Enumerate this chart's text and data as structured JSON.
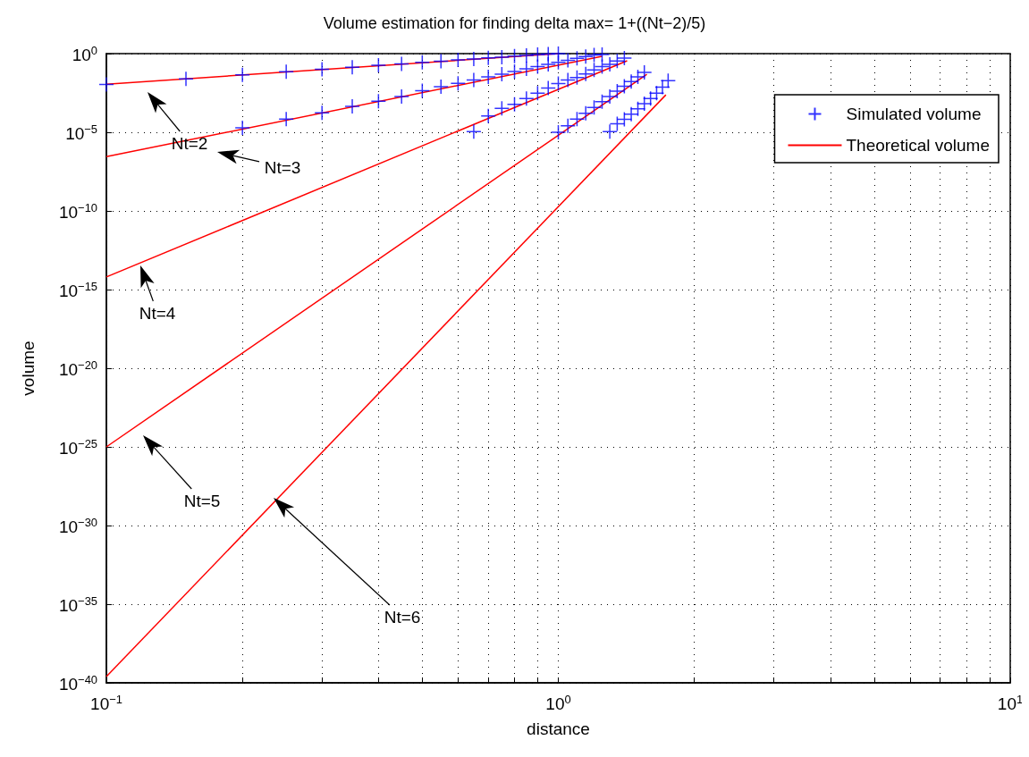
{
  "chart_data": {
    "type": "scatter",
    "title": "Volume estimation for finding delta max= 1+((Nt−2)/5)",
    "xlabel": "distance",
    "ylabel": "volume",
    "log": "xy",
    "xlim": [
      0.1,
      10
    ],
    "ylim": [
      1e-40,
      1
    ],
    "xticks": [
      {
        "value": 0.1,
        "label": "10$^{−1}$"
      },
      {
        "value": 0.2,
        "label": null
      },
      {
        "value": 0.3,
        "label": null
      },
      {
        "value": 0.4,
        "label": null
      },
      {
        "value": 0.5,
        "label": null
      },
      {
        "value": 0.6,
        "label": null
      },
      {
        "value": 0.7,
        "label": null
      },
      {
        "value": 0.8,
        "label": null
      },
      {
        "value": 0.9,
        "label": null
      },
      {
        "value": 1,
        "label": "10$^{0}$"
      },
      {
        "value": 2,
        "label": null
      },
      {
        "value": 3,
        "label": null
      },
      {
        "value": 4,
        "label": null
      },
      {
        "value": 5,
        "label": null
      },
      {
        "value": 6,
        "label": null
      },
      {
        "value": 7,
        "label": null
      },
      {
        "value": 8,
        "label": null
      },
      {
        "value": 9,
        "label": null
      },
      {
        "value": 10,
        "label": "10$^{1}$"
      }
    ],
    "yticks": [
      {
        "value": 1e-40,
        "label": "10$^{−40}$"
      },
      {
        "value": 1e-35,
        "label": "10$^{−35}$"
      },
      {
        "value": 1e-30,
        "label": "10$^{−30}$"
      },
      {
        "value": 1e-25,
        "label": "10$^{−25}$"
      },
      {
        "value": 1e-20,
        "label": "10$^{−20}$"
      },
      {
        "value": 1e-15,
        "label": "10$^{−15}$"
      },
      {
        "value": 1e-10,
        "label": "10$^{−10}$"
      },
      {
        "value": 1e-05,
        "label": "10$^{−5}$"
      },
      {
        "value": 1,
        "label": "10$^{0}$"
      }
    ],
    "grid": true,
    "legend": "top right",
    "series": [
      {
        "name": "Simulated volume",
        "type": "scatter",
        "marker": "cross",
        "color": "#0000ff",
        "x": [
          0.1,
          0.15,
          0.2,
          0.25,
          0.3,
          0.35,
          0.4,
          0.45,
          0.5,
          0.55,
          0.6,
          0.65,
          0.7,
          0.75,
          0.8,
          0.85,
          0.9,
          0.95,
          1.0,
          0.2,
          0.25,
          0.3,
          0.35,
          0.4,
          0.45,
          0.5,
          0.55,
          0.6,
          0.65,
          0.7,
          0.75,
          0.8,
          0.85,
          0.9,
          0.95,
          1.0,
          1.05,
          1.1,
          1.15,
          1.2,
          1.25,
          0.65,
          0.7,
          0.75,
          0.8,
          0.85,
          0.9,
          0.95,
          1.0,
          1.05,
          1.1,
          1.15,
          1.2,
          1.25,
          1.3,
          1.35,
          1.4,
          1.0,
          1.05,
          1.1,
          1.15,
          1.2,
          1.25,
          1.3,
          1.35,
          1.4,
          1.45,
          1.5,
          1.55,
          1.3,
          1.35,
          1.4,
          1.45,
          1.5,
          1.55,
          1.6,
          1.65,
          1.7,
          1.75
        ],
        "values": [
          0.011,
          0.025,
          0.045,
          0.07,
          0.1,
          0.135,
          0.18,
          0.22,
          0.28,
          0.33,
          0.4,
          0.46,
          0.53,
          0.6,
          0.7,
          0.78,
          0.87,
          0.95,
          1.0,
          1.9e-05,
          6.9e-05,
          0.00017,
          0.00044,
          0.00095,
          0.0019,
          0.0044,
          0.0078,
          0.013,
          0.021,
          0.033,
          0.05,
          0.074,
          0.107,
          0.15,
          0.21,
          0.28,
          0.38,
          0.5,
          0.65,
          0.83,
          0.89,
          1.1e-05,
          0.00011,
          0.00033,
          0.00059,
          0.0014,
          0.0031,
          0.0066,
          0.0126,
          0.021,
          0.03,
          0.051,
          0.091,
          0.15,
          0.21,
          0.34,
          0.52,
          1e-05,
          2.6e-05,
          6.8e-05,
          0.00016,
          0.00038,
          0.00087,
          0.0019,
          0.0041,
          0.0083,
          0.017,
          0.033,
          0.065,
          1.1e-05,
          3.5e-05,
          6.6e-05,
          0.00014,
          0.00031,
          0.00065,
          0.0014,
          0.0031,
          0.0074,
          0.019
        ]
      },
      {
        "name": "Theoretical volume",
        "type": "line",
        "color": "#ff0000",
        "x": [
          0.1,
          1.0
        ],
        "values": [
          0.0115,
          1
        ]
      },
      {
        "type": "line",
        "color": "#ff0000",
        "x": [
          0.1,
          1.25
        ],
        "values": [
          2.8e-07,
          0.68
        ]
      },
      {
        "type": "line",
        "color": "#ff0000",
        "x": [
          0.1,
          1.42
        ],
        "values": [
          6.3e-15,
          0.35
        ]
      },
      {
        "type": "line",
        "color": "#ff0000",
        "x": [
          0.1,
          1.57
        ],
        "values": [
          1e-25,
          0.049
        ]
      },
      {
        "type": "line",
        "color": "#ff0000",
        "x": [
          0.1,
          1.73
        ],
        "values": [
          2.5e-40,
          0.0024
        ]
      }
    ],
    "annotations": [
      "Nt=2",
      "Nt=3",
      "Nt=4",
      "Nt=5",
      "Nt=6"
    ]
  }
}
